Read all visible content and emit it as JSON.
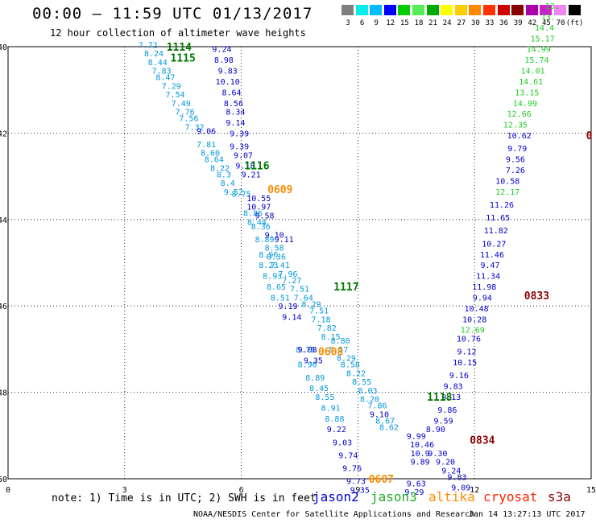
{
  "header": {
    "title": "00:00 – 11:59 UTC 01/13/2017",
    "subtitle": "12 hour collection of altimeter wave heights"
  },
  "legend": {
    "colors": [
      "#7f7f7f",
      "#00eeee",
      "#00bbff",
      "#0000ff",
      "#00cc00",
      "#55ee55",
      "#00aa00",
      "#ffff00",
      "#ffcc00",
      "#ff8800",
      "#ff3300",
      "#cc0000",
      "#880000",
      "#aa00aa",
      "#cc22cc",
      "#ee88ee",
      "#000000"
    ],
    "labels": [
      "3",
      "6",
      "9",
      "12",
      "15",
      "18",
      "21",
      "24",
      "27",
      "30",
      "33",
      "36",
      "39",
      "42",
      "45",
      "70",
      "(ft)"
    ]
  },
  "chart_data": {
    "type": "scatter",
    "xlim": [
      0,
      15
    ],
    "ylim": [
      -50,
      -40
    ],
    "xticks": [
      "0",
      "3",
      "6",
      "9",
      "12",
      "15"
    ],
    "yticks": [
      "-40",
      "-42",
      "-44",
      "-46",
      "-48",
      "-50"
    ],
    "palette": {
      "cyan": "#0099dd",
      "blue": "#0000cc",
      "green": "#22cc22",
      "dkgreen": "#007700",
      "orange": "#ff8c00",
      "dkred": "#880000"
    },
    "track_labels": [
      {
        "text": "1114",
        "x": 4.4,
        "y": -40.0,
        "c": "dkgreen"
      },
      {
        "text": "1115",
        "x": 4.5,
        "y": -40.25,
        "c": "dkgreen"
      },
      {
        "text": "1116",
        "x": 6.4,
        "y": -42.75,
        "c": "dkgreen"
      },
      {
        "text": "0609",
        "x": 7.0,
        "y": -43.3,
        "c": "orange"
      },
      {
        "text": "1117",
        "x": 8.7,
        "y": -45.55,
        "c": "dkgreen"
      },
      {
        "text": "0608",
        "x": 8.3,
        "y": -47.05,
        "c": "orange"
      },
      {
        "text": "1118",
        "x": 11.1,
        "y": -48.1,
        "c": "dkgreen"
      },
      {
        "text": "0607",
        "x": 9.6,
        "y": -50.0,
        "c": "orange"
      },
      {
        "text": "0834",
        "x": 12.2,
        "y": -49.1,
        "c": "dkred"
      },
      {
        "text": "0833",
        "x": 13.6,
        "y": -45.75,
        "c": "dkred"
      },
      {
        "text": "0",
        "x": 14.95,
        "y": -42.05,
        "c": "dkred"
      }
    ],
    "series": [
      {
        "c": "cyan",
        "points": [
          [
            "7.72",
            3.6,
            -39.95
          ],
          [
            "8.24",
            3.75,
            -40.15
          ],
          [
            "8.44",
            3.85,
            -40.35
          ],
          [
            "7.83",
            3.95,
            -40.55
          ],
          [
            "8.47",
            4.05,
            -40.7
          ],
          [
            "7.29",
            4.2,
            -40.9
          ],
          [
            "7.54",
            4.3,
            -41.1
          ],
          [
            "7.49",
            4.45,
            -41.3
          ],
          [
            "7.76",
            4.55,
            -41.5
          ],
          [
            "7.56",
            4.65,
            -41.65
          ],
          [
            "7.32",
            4.8,
            -41.85
          ],
          [
            "7.81",
            5.1,
            -42.25
          ],
          [
            "8.60",
            5.2,
            -42.45
          ],
          [
            "8.64",
            5.3,
            -42.6
          ],
          [
            "8.22",
            5.45,
            -42.8
          ],
          [
            "8.3",
            5.55,
            -42.95
          ],
          [
            "8.4",
            5.65,
            -43.15
          ],
          [
            "9.52",
            5.8,
            -43.35
          ],
          [
            "8.75",
            6.0,
            -43.4
          ],
          [
            "8.86",
            6.3,
            -43.85
          ],
          [
            "8.44",
            6.4,
            -44.05
          ],
          [
            "8.36",
            6.5,
            -44.15
          ],
          [
            "8.89",
            6.6,
            -44.45
          ],
          [
            "8.58",
            6.85,
            -44.65
          ],
          [
            "8.96",
            6.7,
            -44.8
          ],
          [
            "8.36",
            6.9,
            -44.85
          ],
          [
            "8.23",
            6.7,
            -45.05
          ],
          [
            "7.41",
            7.0,
            -45.05
          ],
          [
            "7.96",
            7.2,
            -45.25
          ],
          [
            "8.93",
            6.8,
            -45.3
          ],
          [
            "7.27",
            7.3,
            -45.4
          ],
          [
            "8.65",
            6.9,
            -45.55
          ],
          [
            "7.51",
            7.5,
            -45.6
          ],
          [
            "8.51",
            7.0,
            -45.8
          ],
          [
            "7.64",
            7.6,
            -45.8
          ],
          [
            "8.29",
            7.8,
            -45.95
          ],
          [
            "7.51",
            8.0,
            -46.1
          ],
          [
            "7.18",
            8.05,
            -46.3
          ],
          [
            "7.82",
            8.2,
            -46.5
          ],
          [
            "8.15",
            8.3,
            -46.7
          ],
          [
            "8.80",
            8.55,
            -46.8
          ],
          [
            "8.57",
            8.5,
            -47.0
          ],
          [
            "8.29",
            8.7,
            -47.2
          ],
          [
            "8.58",
            8.8,
            -47.35
          ],
          [
            "8.22",
            8.95,
            -47.55
          ],
          [
            "8.55",
            9.1,
            -47.75
          ],
          [
            "8.03",
            9.25,
            -47.95
          ],
          [
            "8.20",
            9.3,
            -48.15
          ],
          [
            "7.86",
            9.5,
            -48.3
          ],
          [
            "8.67",
            9.7,
            -48.65
          ],
          [
            "8.62",
            9.8,
            -48.8
          ],
          [
            "8.96",
            7.7,
            -47.35
          ],
          [
            "8.75",
            7.65,
            -47.0
          ],
          [
            "8.89",
            7.9,
            -47.65
          ],
          [
            "8.45",
            8.0,
            -47.9
          ],
          [
            "8.55",
            8.15,
            -48.1
          ],
          [
            "8.91",
            8.3,
            -48.35
          ],
          [
            "8.88",
            8.4,
            -48.6
          ]
        ]
      },
      {
        "c": "blue",
        "points": [
          [
            "9.24",
            5.5,
            -40.05
          ],
          [
            "8.98",
            5.55,
            -40.3
          ],
          [
            "9.83",
            5.65,
            -40.55
          ],
          [
            "10.10",
            5.65,
            -40.8
          ],
          [
            "8.64",
            5.75,
            -41.05
          ],
          [
            "8.56",
            5.8,
            -41.3
          ],
          [
            "8.34",
            5.85,
            -41.5
          ],
          [
            "9.14",
            5.85,
            -41.75
          ],
          [
            "9.06",
            5.1,
            -41.95
          ],
          [
            "9.39",
            5.95,
            -42.0
          ],
          [
            "9.39",
            5.95,
            -42.3
          ],
          [
            "9.07",
            6.05,
            -42.5
          ],
          [
            "9.18",
            6.1,
            -42.75
          ],
          [
            "9.21",
            6.25,
            -42.95
          ],
          [
            "10.55",
            6.45,
            -43.5
          ],
          [
            "10.97",
            6.45,
            -43.7
          ],
          [
            "9.58",
            6.6,
            -43.9
          ],
          [
            "9.10",
            6.85,
            -44.35
          ],
          [
            "9.11",
            7.1,
            -44.45
          ],
          [
            "9.19",
            7.2,
            -46.0
          ],
          [
            "9.14",
            7.3,
            -46.25
          ],
          [
            "9.08",
            7.7,
            -47.0
          ],
          [
            "9.35",
            7.85,
            -47.25
          ],
          [
            "9.22",
            8.45,
            -48.85
          ],
          [
            "9.03",
            8.6,
            -49.15
          ],
          [
            "9.74",
            8.75,
            -49.45
          ],
          [
            "9.76",
            8.85,
            -49.75
          ],
          [
            "9.73",
            8.95,
            -50.05
          ],
          [
            "9.35",
            9.05,
            -50.25
          ],
          [
            "9.10",
            9.55,
            -48.5
          ],
          [
            "9.99",
            10.5,
            -49.0
          ],
          [
            "10.46",
            10.65,
            -49.2
          ],
          [
            "10.9",
            10.6,
            -49.4
          ],
          [
            "9.89",
            10.6,
            -49.6
          ],
          [
            "9.63",
            10.5,
            -50.1
          ],
          [
            "9.29",
            10.45,
            -50.3
          ],
          [
            "9.30",
            11.05,
            -49.4
          ],
          [
            "9.20",
            11.25,
            -49.6
          ],
          [
            "9.24",
            11.4,
            -49.8
          ],
          [
            "9.83",
            11.55,
            -49.95
          ],
          [
            "9.09",
            11.65,
            -50.2
          ],
          [
            "8.90",
            11.0,
            -48.85
          ],
          [
            "9.59",
            11.2,
            -48.65
          ],
          [
            "9.86",
            11.3,
            -48.4
          ],
          [
            "9.13",
            11.4,
            -48.1
          ],
          [
            "9.83",
            11.45,
            -47.85
          ],
          [
            "9.16",
            11.6,
            -47.6
          ],
          [
            "10.15",
            11.75,
            -47.3
          ],
          [
            "9.12",
            11.8,
            -47.05
          ],
          [
            "10.76",
            11.85,
            -46.75
          ],
          [
            "10.28",
            12.0,
            -46.3
          ],
          [
            "10.48",
            12.05,
            -46.05
          ],
          [
            "9.94",
            12.2,
            -45.8
          ],
          [
            "11.98",
            12.25,
            -45.55
          ],
          [
            "11.34",
            12.35,
            -45.3
          ],
          [
            "9.47",
            12.4,
            -45.05
          ],
          [
            "11.46",
            12.45,
            -44.8
          ],
          [
            "10.27",
            12.5,
            -44.55
          ],
          [
            "11.82",
            12.55,
            -44.25
          ],
          [
            "11.65",
            12.6,
            -43.95
          ],
          [
            "11.26",
            12.7,
            -43.65
          ],
          [
            "10.58",
            12.85,
            -43.1
          ],
          [
            "7.26",
            13.05,
            -42.85
          ],
          [
            "9.56",
            13.05,
            -42.6
          ],
          [
            "9.79",
            13.1,
            -42.35
          ],
          [
            "10.62",
            13.15,
            -42.05
          ]
        ]
      },
      {
        "c": "green",
        "points": [
          [
            "12.69",
            11.95,
            -46.55
          ],
          [
            "12.17",
            12.85,
            -43.35
          ],
          [
            "12.35",
            13.05,
            -41.8
          ],
          [
            "12.66",
            13.15,
            -41.55
          ],
          [
            "14.99",
            13.3,
            -41.3
          ],
          [
            "13.15",
            13.35,
            -41.05
          ],
          [
            "14.61",
            13.45,
            -40.8
          ],
          [
            "14.01",
            13.5,
            -40.55
          ],
          [
            "15.74",
            13.6,
            -40.3
          ],
          [
            "14.99",
            13.65,
            -40.05
          ],
          [
            "15.17",
            13.75,
            -39.8
          ],
          [
            "14.4",
            13.8,
            -39.55
          ],
          [
            "13.",
            13.9,
            -39.3
          ],
          [
            "13.",
            14.0,
            -39.05
          ]
        ]
      }
    ]
  },
  "footer": {
    "note": "note: 1) Time is in UTC; 2) SWH is in feet",
    "satellites": [
      {
        "name": "jason2",
        "color": "#0000cc",
        "x": 388
      },
      {
        "name": "jason3",
        "color": "#22aa22",
        "x": 460
      },
      {
        "name": "altika",
        "color": "#ff8c00",
        "x": 532
      },
      {
        "name": "cryosat",
        "color": "#ff2200",
        "x": 600
      },
      {
        "name": "s3a",
        "color": "#880000",
        "x": 680
      }
    ],
    "credit": "NOAA/NESDIS Center for Satellite Applications and Research",
    "timestamp": "Jan 14 13:27:13 UTC 2017"
  }
}
